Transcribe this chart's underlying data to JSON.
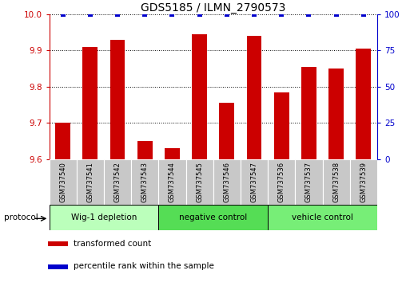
{
  "title": "GDS5185 / ILMN_2790573",
  "samples": [
    "GSM737540",
    "GSM737541",
    "GSM737542",
    "GSM737543",
    "GSM737544",
    "GSM737545",
    "GSM737546",
    "GSM737547",
    "GSM737536",
    "GSM737537",
    "GSM737538",
    "GSM737539"
  ],
  "transformed_counts": [
    9.7,
    9.91,
    9.93,
    9.65,
    9.63,
    9.945,
    9.755,
    9.94,
    9.785,
    9.855,
    9.85,
    9.905
  ],
  "percentile_ranks": [
    100,
    100,
    100,
    100,
    100,
    100,
    100,
    100,
    100,
    100,
    100,
    100
  ],
  "ylim_left": [
    9.6,
    10.0
  ],
  "ylim_right": [
    0,
    100
  ],
  "yticks_left": [
    9.6,
    9.7,
    9.8,
    9.9,
    10.0
  ],
  "yticks_right": [
    0,
    25,
    50,
    75,
    100
  ],
  "bar_color": "#cc0000",
  "dot_color": "#0000cc",
  "grid_color": "#000000",
  "groups": [
    {
      "label": "Wig-1 depletion",
      "start": 0,
      "end": 4
    },
    {
      "label": "negative control",
      "start": 4,
      "end": 8
    },
    {
      "label": "vehicle control",
      "start": 8,
      "end": 12
    }
  ],
  "group_colors": [
    "#bbffbb",
    "#55dd55",
    "#77ee77"
  ],
  "protocol_label": "protocol",
  "legend_items": [
    {
      "label": "transformed count",
      "color": "#cc0000"
    },
    {
      "label": "percentile rank within the sample",
      "color": "#0000cc"
    }
  ],
  "left_axis_color": "#cc0000",
  "right_axis_color": "#0000cc",
  "tick_label_bg": "#c8c8c8",
  "bar_width": 0.55,
  "dot_size": 18,
  "dot_marker": "s"
}
